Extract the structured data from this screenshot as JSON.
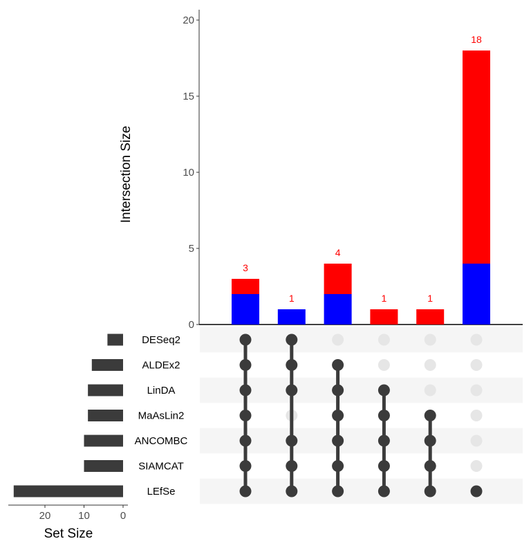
{
  "chart_data": {
    "type": "bar",
    "subtype": "upset",
    "title": "",
    "intersection_axis": {
      "label": "Intersection Size",
      "ylim": [
        0,
        20
      ],
      "ticks": [
        0,
        5,
        10,
        15,
        20
      ],
      "grid": false
    },
    "set_size_axis": {
      "label": "Set Size",
      "xlim": [
        28,
        0
      ],
      "ticks": [
        20,
        10,
        0
      ],
      "reversed": true
    },
    "sets": [
      {
        "name": "DESeq2",
        "size": 4
      },
      {
        "name": "ALDEx2",
        "size": 8
      },
      {
        "name": "LinDA",
        "size": 9
      },
      {
        "name": "MaAsLin2",
        "size": 9
      },
      {
        "name": "ANCOMBC",
        "size": 10
      },
      {
        "name": "SIAMCAT",
        "size": 10
      },
      {
        "name": "LEfSe",
        "size": 28
      }
    ],
    "series": [
      {
        "name": "blue",
        "color": "#0000ff",
        "values": [
          2,
          1,
          2,
          0,
          0,
          4
        ]
      },
      {
        "name": "red",
        "color": "#ff0000",
        "values": [
          1,
          0,
          2,
          1,
          1,
          14
        ]
      }
    ],
    "intersections": [
      {
        "total": 3,
        "members": [
          "DESeq2",
          "ALDEx2",
          "LinDA",
          "MaAsLin2",
          "ANCOMBC",
          "SIAMCAT",
          "LEfSe"
        ]
      },
      {
        "total": 1,
        "members": [
          "DESeq2",
          "ALDEx2",
          "LinDA",
          "ANCOMBC",
          "SIAMCAT",
          "LEfSe"
        ]
      },
      {
        "total": 4,
        "members": [
          "ALDEx2",
          "LinDA",
          "MaAsLin2",
          "ANCOMBC",
          "SIAMCAT",
          "LEfSe"
        ]
      },
      {
        "total": 1,
        "members": [
          "LinDA",
          "MaAsLin2",
          "ANCOMBC",
          "SIAMCAT",
          "LEfSe"
        ]
      },
      {
        "total": 1,
        "members": [
          "MaAsLin2",
          "ANCOMBC",
          "SIAMCAT",
          "LEfSe"
        ]
      },
      {
        "total": 18,
        "members": [
          "LEfSe"
        ]
      }
    ],
    "colors": {
      "label_color": "#ff0000",
      "dot_active": "#3b3b3b",
      "dot_inactive": "#e6e6e6",
      "stripe": "#f5f5f5",
      "set_bar": "#3b3b3b"
    }
  }
}
